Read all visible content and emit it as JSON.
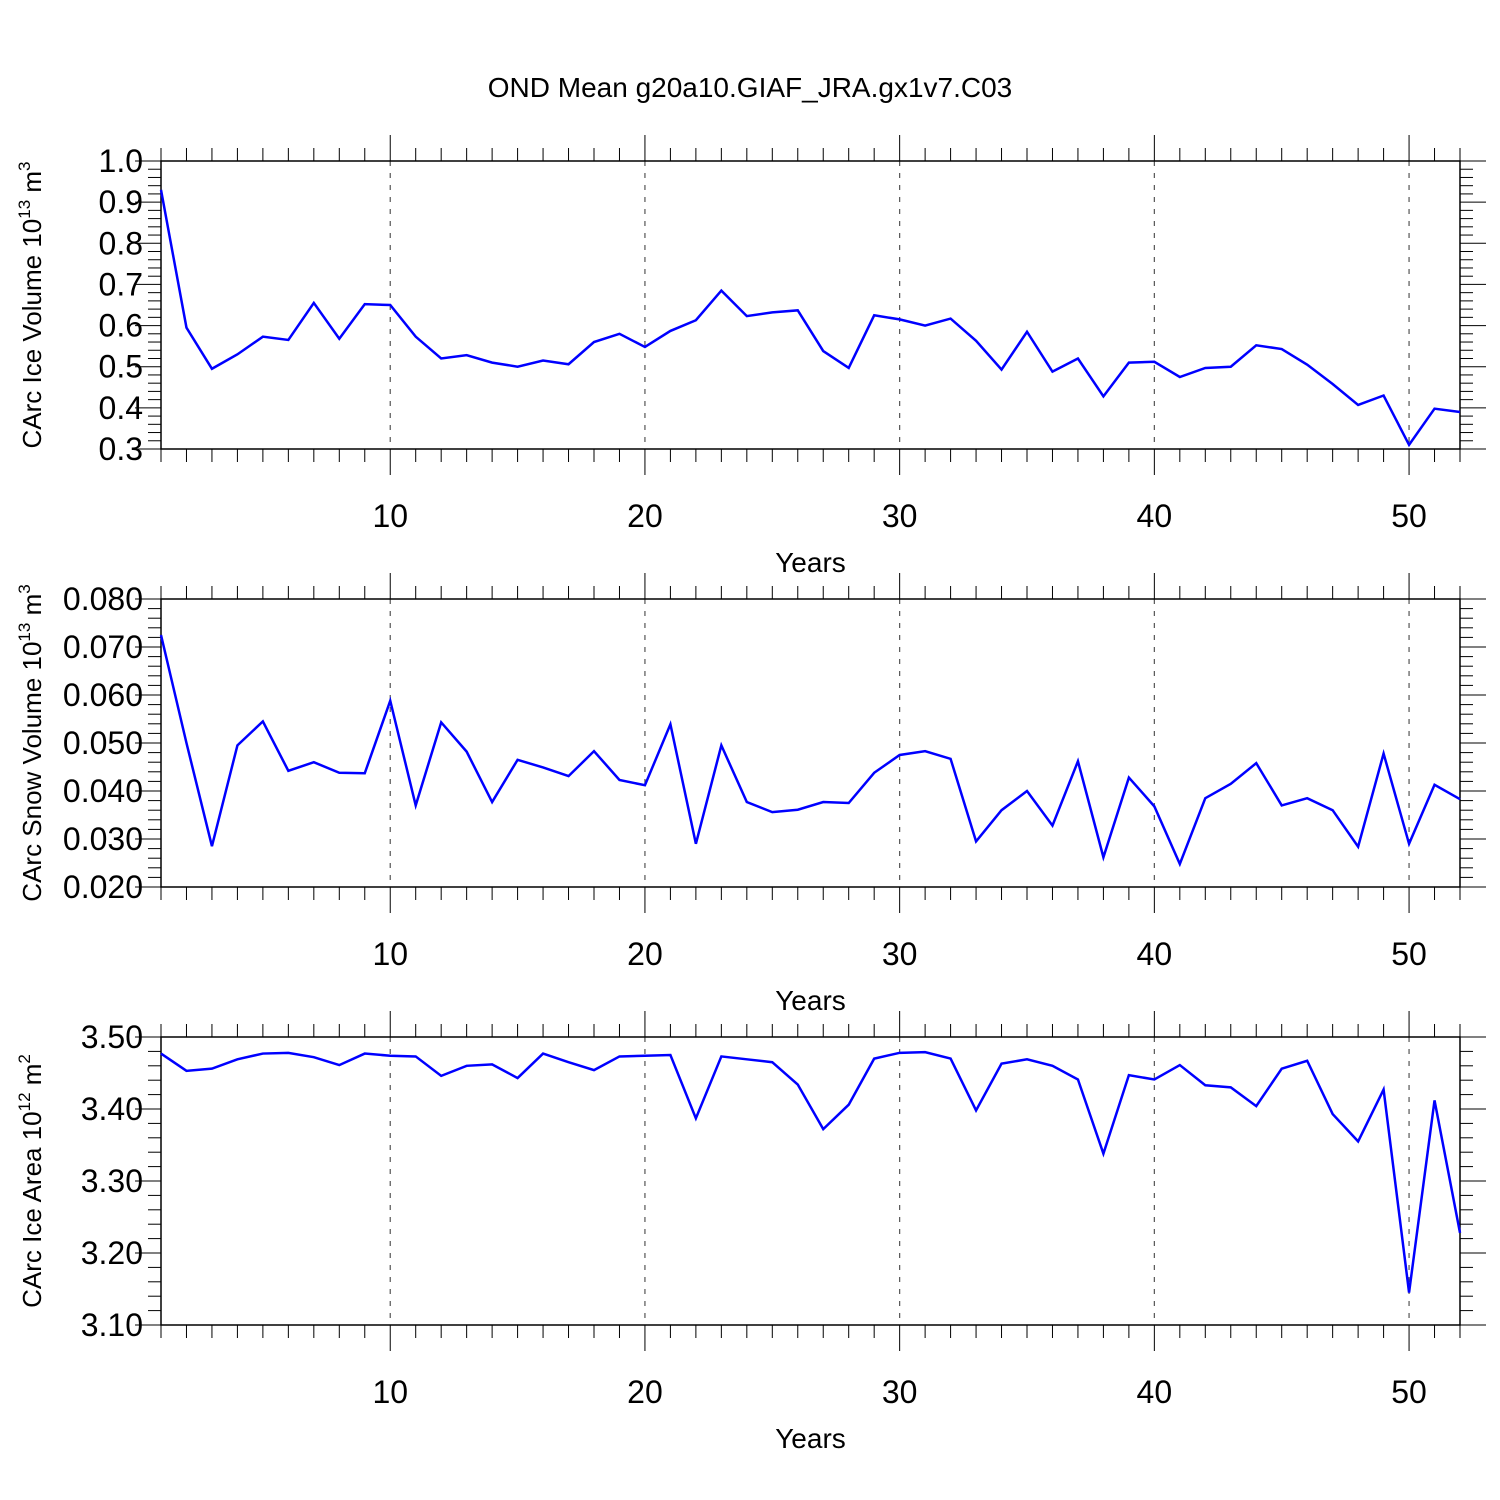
{
  "title": "OND Mean g20a10.GIAF_JRA.gx1v7.C03",
  "colors": {
    "line": "#0000ff",
    "axis": "#000000",
    "grid": "#555555"
  },
  "chart_data": [
    {
      "type": "line",
      "title": "OND Mean g20a10.GIAF_JRA.gx1v7.C03",
      "xlabel": "Years",
      "ylabel": {
        "main": "CArc Ice Volume 10",
        "exp": "13",
        "unit": " m",
        "unit_exp": "3"
      },
      "xlim": [
        1,
        52
      ],
      "ylim": [
        0.3,
        1.0
      ],
      "y_major_ticks": [
        1.0,
        0.9,
        0.8,
        0.7,
        0.6,
        0.5,
        0.4,
        0.3
      ],
      "y_tick_labels": [
        "1.0",
        "0.9",
        "0.8",
        "0.7",
        "0.6",
        "0.5",
        "0.4",
        "0.3"
      ],
      "x_major_ticks": [
        10,
        20,
        30,
        40,
        50
      ],
      "x_tick_labels": [
        "10",
        "20",
        "30",
        "40",
        "50"
      ],
      "grid": "vertical dashed at major x ticks",
      "series": [
        {
          "name": "CArc Ice Volume",
          "x": [
            1,
            2,
            3,
            4,
            5,
            6,
            7,
            8,
            9,
            10,
            11,
            12,
            13,
            14,
            15,
            16,
            17,
            18,
            19,
            20,
            21,
            22,
            23,
            24,
            25,
            26,
            27,
            28,
            29,
            30,
            31,
            32,
            33,
            34,
            35,
            36,
            37,
            38,
            39,
            40,
            41,
            42,
            43,
            44,
            45,
            46,
            47,
            48,
            49,
            50,
            51,
            52
          ],
          "values": [
            0.93,
            0.595,
            0.495,
            0.53,
            0.573,
            0.565,
            0.655,
            0.568,
            0.652,
            0.65,
            0.573,
            0.52,
            0.528,
            0.51,
            0.5,
            0.515,
            0.506,
            0.56,
            0.58,
            0.548,
            0.587,
            0.613,
            0.685,
            0.623,
            0.632,
            0.637,
            0.538,
            0.497,
            0.625,
            0.615,
            0.6,
            0.617,
            0.563,
            0.493,
            0.585,
            0.488,
            0.52,
            0.428,
            0.51,
            0.512,
            0.475,
            0.497,
            0.5,
            0.552,
            0.543,
            0.505,
            0.458,
            0.407,
            0.43,
            0.31,
            0.398,
            0.39
          ]
        }
      ]
    },
    {
      "type": "line",
      "xlabel": "Years",
      "ylabel": {
        "main": "CArc Snow Volume 10",
        "exp": "13",
        "unit": " m",
        "unit_exp": "3"
      },
      "xlim": [
        1,
        52
      ],
      "ylim": [
        0.02,
        0.08
      ],
      "y_major_ticks": [
        0.08,
        0.07,
        0.06,
        0.05,
        0.04,
        0.03,
        0.02
      ],
      "y_tick_labels": [
        "0.080",
        "0.070",
        "0.060",
        "0.050",
        "0.040",
        "0.030",
        "0.020"
      ],
      "x_major_ticks": [
        10,
        20,
        30,
        40,
        50
      ],
      "x_tick_labels": [
        "10",
        "20",
        "30",
        "40",
        "50"
      ],
      "grid": "vertical dashed at major x ticks",
      "series": [
        {
          "name": "CArc Snow Volume",
          "x": [
            1,
            2,
            3,
            4,
            5,
            6,
            7,
            8,
            9,
            10,
            11,
            12,
            13,
            14,
            15,
            16,
            17,
            18,
            19,
            20,
            21,
            22,
            23,
            24,
            25,
            26,
            27,
            28,
            29,
            30,
            31,
            32,
            33,
            34,
            35,
            36,
            37,
            38,
            39,
            40,
            41,
            42,
            43,
            44,
            45,
            46,
            47,
            48,
            49,
            50,
            51,
            52
          ],
          "values": [
            0.0725,
            0.05,
            0.0285,
            0.0495,
            0.0545,
            0.0442,
            0.046,
            0.0438,
            0.0437,
            0.0588,
            0.037,
            0.0543,
            0.0482,
            0.0377,
            0.0465,
            0.0449,
            0.0431,
            0.0483,
            0.0423,
            0.0412,
            0.0539,
            0.029,
            0.0495,
            0.0377,
            0.0356,
            0.0361,
            0.0377,
            0.0375,
            0.0438,
            0.0475,
            0.0483,
            0.0467,
            0.0295,
            0.036,
            0.04,
            0.0328,
            0.0462,
            0.0262,
            0.0428,
            0.0368,
            0.0248,
            0.0385,
            0.0415,
            0.0458,
            0.037,
            0.0385,
            0.036,
            0.0284,
            0.0478,
            0.029,
            0.0413,
            0.0383
          ]
        }
      ]
    },
    {
      "type": "line",
      "xlabel": "Years",
      "ylabel": {
        "main": "CArc Ice Area 10",
        "exp": "12",
        "unit": " m",
        "unit_exp": "2"
      },
      "xlim": [
        1,
        52
      ],
      "ylim": [
        3.1,
        3.5
      ],
      "y_major_ticks": [
        3.5,
        3.4,
        3.3,
        3.2,
        3.1
      ],
      "y_tick_labels": [
        "3.50",
        "3.40",
        "3.30",
        "3.20",
        "3.10"
      ],
      "x_major_ticks": [
        10,
        20,
        30,
        40,
        50
      ],
      "x_tick_labels": [
        "10",
        "20",
        "30",
        "40",
        "50"
      ],
      "grid": "vertical dashed at major x ticks",
      "series": [
        {
          "name": "CArc Ice Area",
          "x": [
            1,
            2,
            3,
            4,
            5,
            6,
            7,
            8,
            9,
            10,
            11,
            12,
            13,
            14,
            15,
            16,
            17,
            18,
            19,
            20,
            21,
            22,
            23,
            24,
            25,
            26,
            27,
            28,
            29,
            30,
            31,
            32,
            33,
            34,
            35,
            36,
            37,
            38,
            39,
            40,
            41,
            42,
            43,
            44,
            45,
            46,
            47,
            48,
            49,
            50,
            51,
            52
          ],
          "values": [
            3.477,
            3.453,
            3.456,
            3.469,
            3.477,
            3.478,
            3.472,
            3.461,
            3.477,
            3.474,
            3.473,
            3.446,
            3.46,
            3.462,
            3.443,
            3.477,
            3.465,
            3.454,
            3.473,
            3.474,
            3.475,
            3.387,
            3.473,
            3.469,
            3.465,
            3.434,
            3.372,
            3.406,
            3.47,
            3.478,
            3.479,
            3.47,
            3.398,
            3.463,
            3.469,
            3.46,
            3.441,
            3.338,
            3.447,
            3.441,
            3.461,
            3.433,
            3.43,
            3.404,
            3.456,
            3.467,
            3.393,
            3.355,
            3.427,
            3.145,
            3.412,
            3.228
          ]
        }
      ]
    }
  ]
}
